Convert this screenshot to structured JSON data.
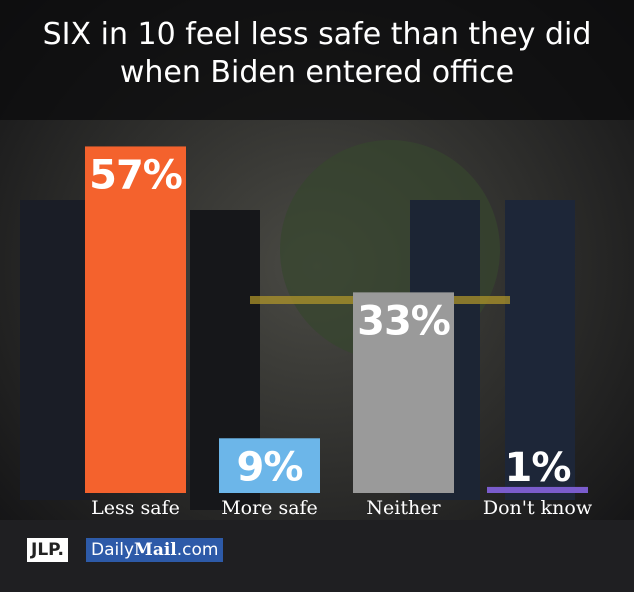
{
  "chart_data": {
    "type": "bar",
    "title": "SIX in 10 feel less safe than they did when Biden entered office",
    "categories": [
      "Less safe",
      "More safe",
      "Neither",
      "Don't know"
    ],
    "values": [
      57,
      9,
      33,
      1
    ],
    "value_labels": [
      "57%",
      "9%",
      "33%",
      "1%"
    ],
    "colors": [
      "#f4622d",
      "#6cb6e9",
      "#9a9a9a",
      "#7a5ccc"
    ]
  },
  "logos": {
    "left": "JLP.",
    "right_a": "Daily",
    "right_b": "Mail",
    "right_c": ".com"
  }
}
